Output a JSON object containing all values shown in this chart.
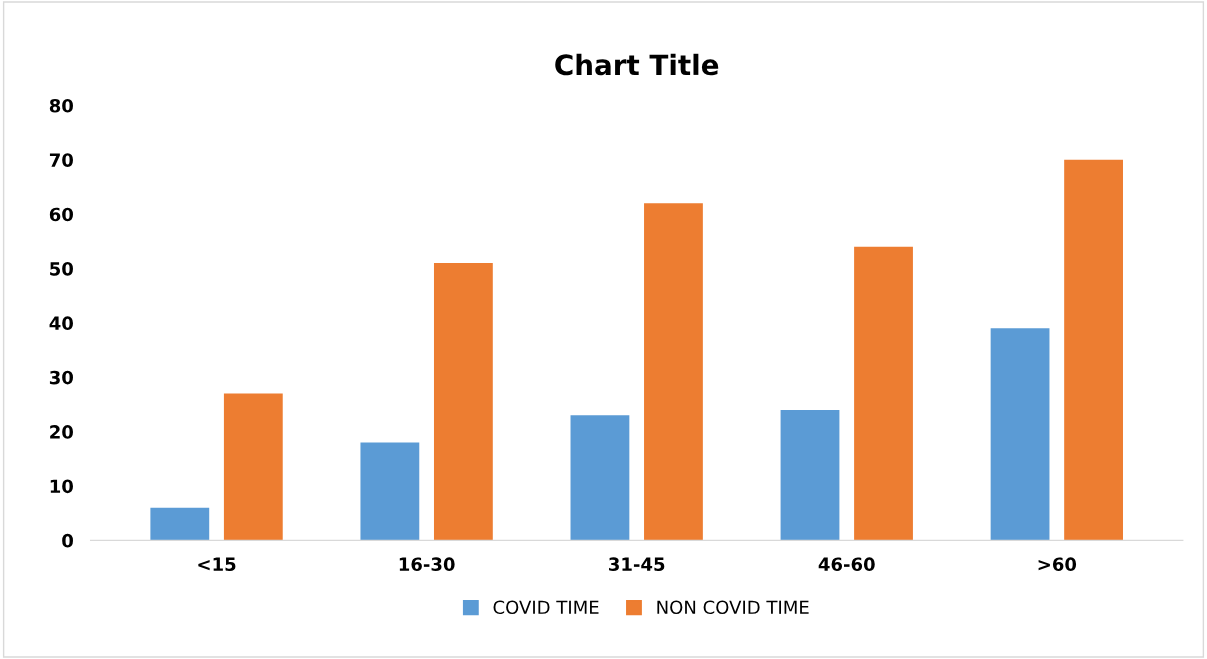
{
  "chart_data": {
    "type": "bar",
    "title": "Chart Title",
    "categories": [
      "<15",
      "16-30",
      "31-45",
      "46-60",
      ">60"
    ],
    "series": [
      {
        "name": "COVID TIME",
        "color": "#5b9bd5",
        "values": [
          6,
          18,
          23,
          24,
          39
        ]
      },
      {
        "name": "NON COVID TIME",
        "color": "#ed7d31",
        "values": [
          27,
          51,
          62,
          54,
          70
        ]
      }
    ],
    "ylim": [
      0,
      80
    ],
    "yticks": [
      0,
      10,
      20,
      30,
      40,
      50,
      60,
      70,
      80
    ],
    "grid": false,
    "legend": "bottom"
  }
}
